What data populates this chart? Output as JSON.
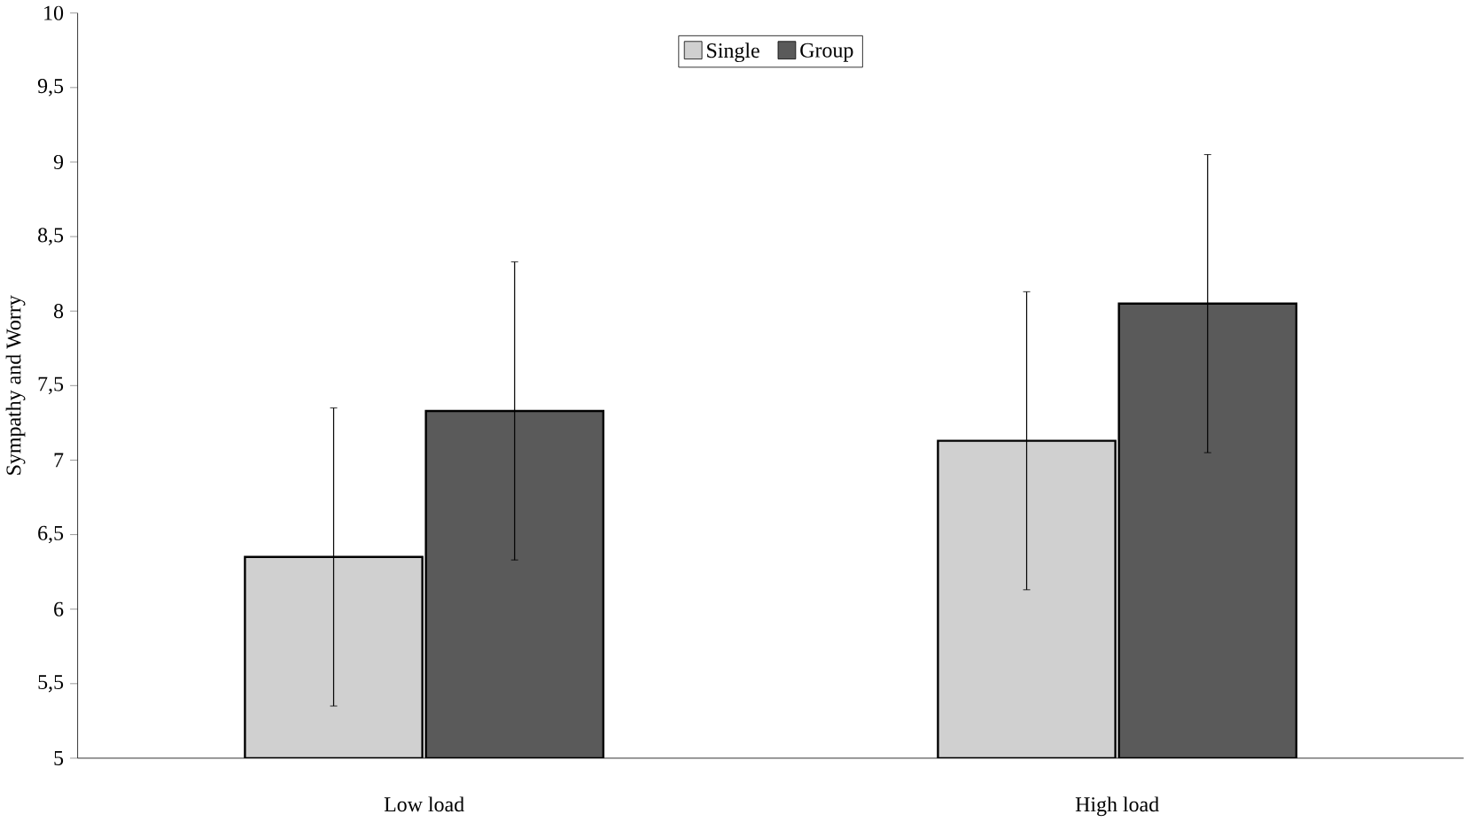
{
  "chart_data": {
    "type": "bar",
    "ylabel": "Sympathy and Worry",
    "categories": [
      "Low load",
      "High load"
    ],
    "series": [
      {
        "name": "Single",
        "color": "#d0d0d0",
        "values": [
          6.35,
          7.13
        ],
        "errors": [
          1.0,
          1.0
        ]
      },
      {
        "name": "Group",
        "color": "#5a5a5a",
        "values": [
          7.33,
          8.05
        ],
        "errors": [
          1.0,
          1.0
        ]
      }
    ],
    "ylim": [
      5,
      10
    ],
    "yticks": [
      5,
      {
        "value": 5.5,
        "label": "5,5"
      },
      6,
      {
        "value": 6.5,
        "label": "6,5"
      },
      7,
      {
        "value": 7.5,
        "label": "7,5"
      },
      8,
      {
        "value": 8.5,
        "label": "8,5"
      },
      9,
      {
        "value": 9.5,
        "label": "9,5"
      },
      10
    ],
    "grid": false,
    "legend": "top"
  }
}
